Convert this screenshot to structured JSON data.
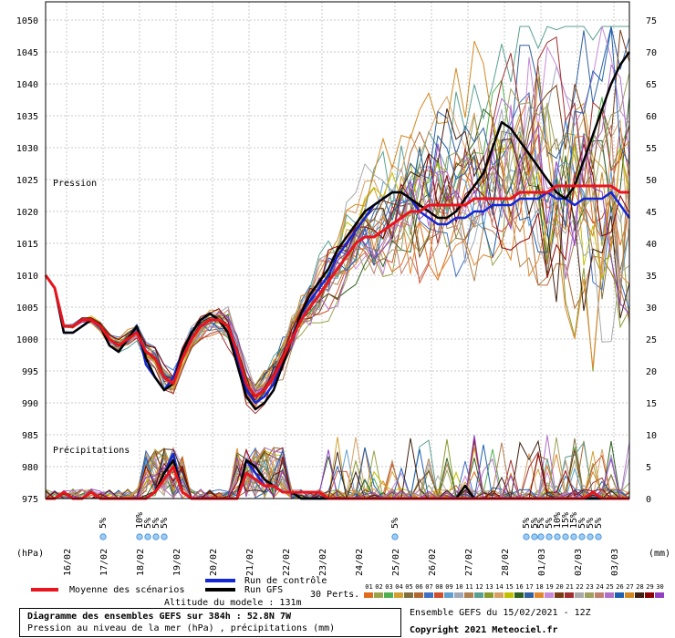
{
  "chart_data": {
    "type": "line",
    "xlabel": "",
    "ylabel_left": "(hPa)",
    "ylabel_right": "(mm)",
    "label_pression": "Pression",
    "label_precip": "Précipitations",
    "x_ticks": [
      "16/02",
      "17/02",
      "18/02",
      "19/02",
      "20/02",
      "21/02",
      "22/02",
      "23/02",
      "24/02",
      "25/02",
      "26/02",
      "27/02",
      "28/02",
      "01/03",
      "02/03",
      "03/03"
    ],
    "y_ticks_left": [
      975,
      980,
      985,
      990,
      995,
      1000,
      1005,
      1010,
      1015,
      1020,
      1025,
      1030,
      1035,
      1040,
      1045,
      1050
    ],
    "y_ticks_right": [
      0,
      5,
      10,
      15,
      20,
      25,
      30,
      35,
      40,
      45,
      50,
      55,
      60,
      65,
      70,
      75
    ],
    "ylim_left": [
      975,
      1050
    ],
    "ylim_right": [
      0,
      75
    ],
    "x_steps": 64,
    "series": [
      {
        "name": "Moyenne des scénarios",
        "color": "#e8141e",
        "values": [
          1010,
          1008,
          1002,
          1002,
          1003,
          1003,
          1002,
          1000,
          999,
          1000,
          1001,
          998,
          997,
          994,
          993,
          997,
          1000,
          1002,
          1003,
          1003,
          1002,
          998,
          993,
          991,
          992,
          994,
          997,
          1000,
          1003,
          1005,
          1007,
          1009,
          1011,
          1013,
          1015,
          1016,
          1016,
          1017,
          1018,
          1019,
          1020,
          1020,
          1021,
          1021,
          1021,
          1021,
          1021,
          1022,
          1022,
          1022,
          1022,
          1022,
          1023,
          1023,
          1023,
          1023,
          1024,
          1024,
          1024,
          1024,
          1024,
          1024,
          1024,
          1023,
          1023
        ],
        "precip": [
          0,
          0,
          1,
          0,
          0,
          1,
          0,
          0,
          0,
          0,
          0,
          0,
          1,
          3,
          5,
          1,
          0,
          0,
          0,
          0,
          0,
          0,
          4,
          3,
          2,
          2,
          1,
          1,
          1,
          1,
          1,
          0,
          0,
          0,
          0,
          0,
          0,
          0,
          0,
          0,
          0,
          0,
          0,
          0,
          0,
          0,
          0,
          0,
          0,
          0,
          0,
          0,
          0,
          0,
          0,
          0,
          0,
          0,
          0,
          0,
          1,
          0,
          0,
          0,
          0
        ]
      },
      {
        "name": "Run de contrôle",
        "color": "#1226d6",
        "values": [
          1010,
          1008,
          1001,
          1001,
          1002,
          1003,
          1002,
          999,
          998,
          1000,
          1002,
          996,
          994,
          992,
          994,
          998,
          1001,
          1003,
          1004,
          1003,
          1001,
          997,
          992,
          990,
          991,
          993,
          997,
          1000,
          1004,
          1006,
          1008,
          1010,
          1013,
          1015,
          1017,
          1019,
          1021,
          1022,
          1023,
          1023,
          1022,
          1020,
          1019,
          1018,
          1018,
          1019,
          1019,
          1020,
          1020,
          1021,
          1021,
          1021,
          1022,
          1022,
          1022,
          1023,
          1022,
          1022,
          1021,
          1022,
          1022,
          1022,
          1023,
          1021,
          1019
        ],
        "precip": [
          0,
          0,
          1,
          0,
          0,
          1,
          0,
          0,
          0,
          0,
          0,
          0,
          1,
          4,
          7,
          1,
          0,
          0,
          0,
          0,
          0,
          0,
          6,
          4,
          2,
          2,
          1,
          1,
          0,
          0,
          0,
          0,
          0,
          0,
          0,
          0,
          0,
          0,
          0,
          0,
          0,
          0,
          0,
          0,
          0,
          0,
          0,
          0,
          0,
          0,
          0,
          0,
          0,
          0,
          0,
          0,
          0,
          0,
          0,
          0,
          0,
          0,
          0,
          0,
          0
        ]
      },
      {
        "name": "Run GFS",
        "color": "#000000",
        "values": [
          1010,
          1008,
          1001,
          1001,
          1002,
          1003,
          1002,
          999,
          998,
          1000,
          1002,
          997,
          994,
          992,
          993,
          998,
          1001,
          1003,
          1004,
          1003,
          1001,
          996,
          991,
          989,
          990,
          992,
          996,
          1000,
          1004,
          1007,
          1009,
          1011,
          1014,
          1016,
          1018,
          1020,
          1021,
          1022,
          1023,
          1023,
          1022,
          1021,
          1020,
          1019,
          1019,
          1020,
          1022,
          1024,
          1026,
          1030,
          1034,
          1033,
          1031,
          1029,
          1027,
          1025,
          1023,
          1022,
          1024,
          1028,
          1032,
          1036,
          1040,
          1043,
          1045
        ],
        "precip": [
          0,
          0,
          1,
          0,
          0,
          1,
          0,
          0,
          0,
          0,
          0,
          0,
          1,
          4,
          6,
          1,
          0,
          0,
          0,
          0,
          0,
          0,
          6,
          5,
          3,
          2,
          1,
          1,
          0,
          0,
          0,
          0,
          0,
          0,
          0,
          0,
          0,
          0,
          0,
          0,
          0,
          0,
          0,
          0,
          0,
          0,
          2,
          0,
          0,
          0,
          0,
          0,
          0,
          0,
          0,
          0,
          0,
          0,
          0,
          0,
          0,
          0,
          0,
          0,
          0
        ]
      }
    ]
  },
  "snow_marks": [
    {
      "x": 17.0,
      "labels": [
        "5%"
      ]
    },
    {
      "x": 18.0,
      "labels": [
        "10%",
        "5%",
        "5%",
        "5%"
      ]
    },
    {
      "x": 25.0,
      "labels": [
        "5%"
      ]
    },
    {
      "x": 28.6,
      "labels": [
        "5%",
        "5%"
      ]
    },
    {
      "x": 29.0,
      "labels": [
        "5%",
        "5%",
        "10%",
        "15%",
        "15%",
        "5%",
        "5%",
        "5%"
      ]
    }
  ],
  "legend": {
    "mean": "Moyenne des scénarios",
    "control": "Run de contrôle",
    "gfs": "Run GFS",
    "perts_label": "30 Perts.",
    "pert_numbers": [
      "01",
      "02",
      "03",
      "04",
      "05",
      "06",
      "07",
      "08",
      "09",
      "10",
      "11",
      "12",
      "13",
      "14",
      "15",
      "16",
      "17",
      "18",
      "19",
      "20",
      "21",
      "22",
      "23",
      "24",
      "25",
      "26",
      "27",
      "28",
      "29",
      "30"
    ],
    "pert_colors": [
      "#e06b1a",
      "#9aa34a",
      "#50b050",
      "#d1a030",
      "#807040",
      "#b06830",
      "#4070c0",
      "#d04f2a",
      "#5fa0d0",
      "#a0a8b8",
      "#b08050",
      "#5aa090",
      "#8a9a2c",
      "#d6a064",
      "#c0c000",
      "#306020",
      "#3060a0",
      "#e08830",
      "#c78ad6",
      "#7a3c16",
      "#a03030",
      "#a9a9a9",
      "#a0a060",
      "#c08070",
      "#b070c8",
      "#2060b0",
      "#d08820",
      "#402010",
      "#8b0000",
      "#9040c0"
    ],
    "altitude": "Altitude du modele : 131m"
  },
  "footer": {
    "title": "Diagramme des ensembles GEFS sur 384h : 52.8N 7W",
    "subtitle": "Pression au niveau de la mer (hPa) , précipitations (mm)",
    "run": "Ensemble GEFS du 15/02/2021 - 12Z",
    "copyright": "Copyright 2021 Meteociel.fr"
  }
}
